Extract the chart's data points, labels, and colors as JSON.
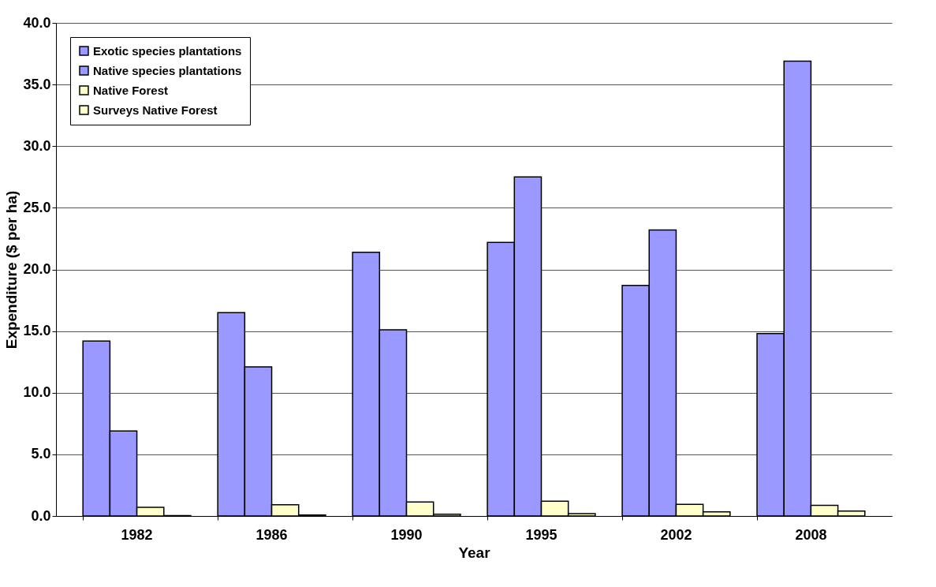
{
  "chart_data": {
    "type": "bar",
    "xlabel": "Year",
    "ylabel": "Expenditure ($ per ha)",
    "categories": [
      "1982",
      "1986",
      "1990",
      "1995",
      "2002",
      "2008"
    ],
    "series": [
      {
        "name": "Exotic species plantations",
        "color": "#9999ff",
        "values": [
          14.2,
          16.5,
          21.4,
          22.2,
          18.7,
          14.8
        ]
      },
      {
        "name": "Native species plantations",
        "color": "#9999ff",
        "values": [
          6.9,
          12.1,
          15.1,
          27.5,
          23.2,
          36.9
        ]
      },
      {
        "name": "Native Forest",
        "color": "#ffffcc",
        "values": [
          0.7,
          0.92,
          1.14,
          1.2,
          0.95,
          0.87
        ]
      },
      {
        "name": "Surveys Native Forest",
        "color": "#ffffcc",
        "values": [
          0.03,
          0.08,
          0.15,
          0.2,
          0.33,
          0.4
        ]
      }
    ],
    "ylim": [
      0,
      40
    ],
    "yticks": [
      {
        "value": 0,
        "label": "0.0"
      },
      {
        "value": 5,
        "label": "5.0"
      },
      {
        "value": 10,
        "label": "10.0"
      },
      {
        "value": 15,
        "label": "15.0"
      },
      {
        "value": 20,
        "label": "20.0"
      },
      {
        "value": 25,
        "label": "25.0"
      },
      {
        "value": 30,
        "label": "30.0"
      },
      {
        "value": 35,
        "label": "35.0"
      },
      {
        "value": 40,
        "label": "40.0"
      }
    ],
    "grid": "y",
    "legend": "top left"
  }
}
